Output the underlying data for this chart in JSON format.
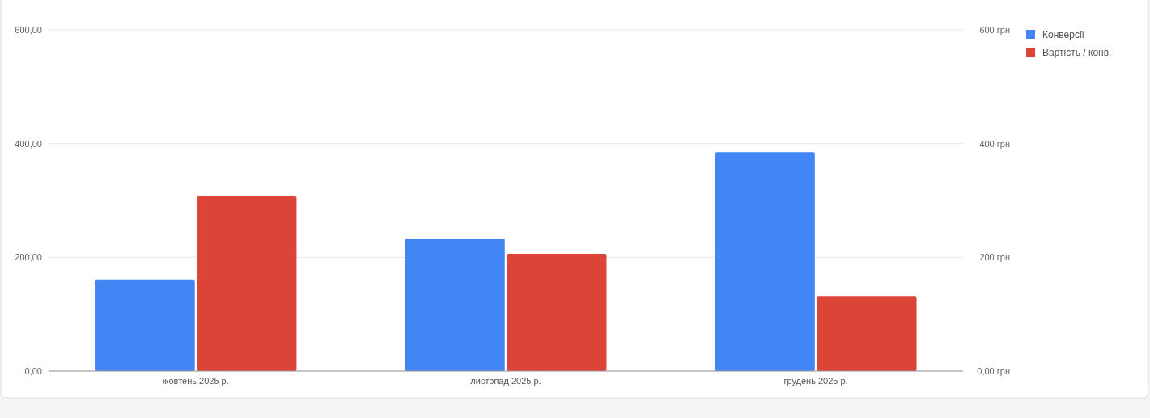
{
  "chart_data": {
    "type": "bar",
    "categories": [
      "жовтень 2025 р.",
      "листопад 2025 р.",
      "грудень 2025 р."
    ],
    "series": [
      {
        "name": "Конверсії",
        "color": "#4285f4",
        "values": [
          161,
          233,
          385
        ]
      },
      {
        "name": "Вартість / конв.",
        "color": "#db4437",
        "values": [
          307,
          206,
          132
        ],
        "axis": "y2"
      }
    ],
    "ylim": [
      0,
      600
    ],
    "yticks": [
      {
        "value": 0,
        "label": "0,00"
      },
      {
        "value": 200,
        "label": "200,00"
      },
      {
        "value": 400,
        "label": "400,00"
      },
      {
        "value": 600,
        "label": "600,00"
      }
    ],
    "y2lim": [
      0,
      600
    ],
    "y2ticks": [
      {
        "value": 0,
        "label": "0,00 грн"
      },
      {
        "value": 200,
        "label": "200 грн"
      },
      {
        "value": 400,
        "label": "400 грн"
      },
      {
        "value": 600,
        "label": "600 грн"
      }
    ],
    "grid": "y",
    "legend": "right"
  }
}
